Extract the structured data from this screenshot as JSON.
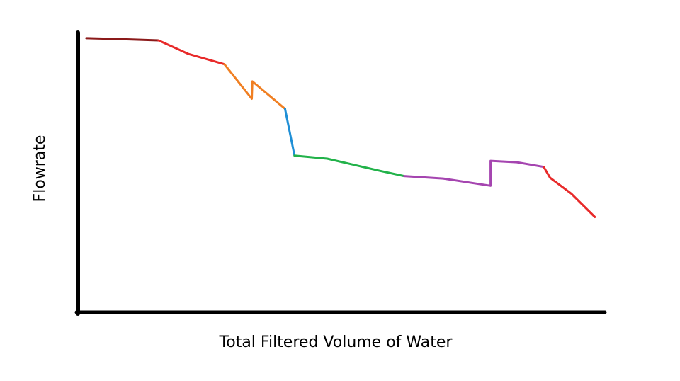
{
  "chart_data": {
    "type": "line",
    "title": "",
    "xlabel": "Total Filtered Volume of Water",
    "ylabel": "Flowrate",
    "xlim": [
      0,
      100
    ],
    "ylim": [
      0,
      100
    ],
    "grid": false,
    "ticks": false,
    "axis_color": "#000000",
    "series": [
      {
        "color": "#8b1a1a",
        "points": [
          [
            1.6,
            99
          ],
          [
            7.8,
            98.7
          ],
          [
            15.3,
            98.2
          ]
        ]
      },
      {
        "color": "#e82a2a",
        "points": [
          [
            15.3,
            98.2
          ],
          [
            21,
            93.3
          ],
          [
            27.8,
            89.6
          ]
        ]
      },
      {
        "color": "#f07f22",
        "points": [
          [
            27.8,
            89.6
          ],
          [
            33,
            77.1
          ],
          [
            33.1,
            83.4
          ],
          [
            39.3,
            73.5
          ]
        ]
      },
      {
        "color": "#1f8fd6",
        "points": [
          [
            39.3,
            73.5
          ],
          [
            41.1,
            56.6
          ]
        ]
      },
      {
        "color": "#22b24a",
        "points": [
          [
            41.1,
            56.6
          ],
          [
            47.3,
            55.5
          ],
          [
            57.3,
            51.1
          ],
          [
            61.9,
            49.2
          ]
        ]
      },
      {
        "color": "#a545b0",
        "points": [
          [
            61.9,
            49.2
          ],
          [
            69.3,
            48.3
          ],
          [
            78.3,
            45.7
          ],
          [
            78.3,
            54.7
          ],
          [
            83.3,
            54.2
          ],
          [
            88.4,
            52.5
          ]
        ]
      },
      {
        "color": "#e82a2a",
        "points": [
          [
            88.4,
            52.5
          ],
          [
            89.6,
            48.6
          ],
          [
            93.6,
            42.9
          ],
          [
            98.1,
            34.4
          ]
        ]
      }
    ]
  }
}
